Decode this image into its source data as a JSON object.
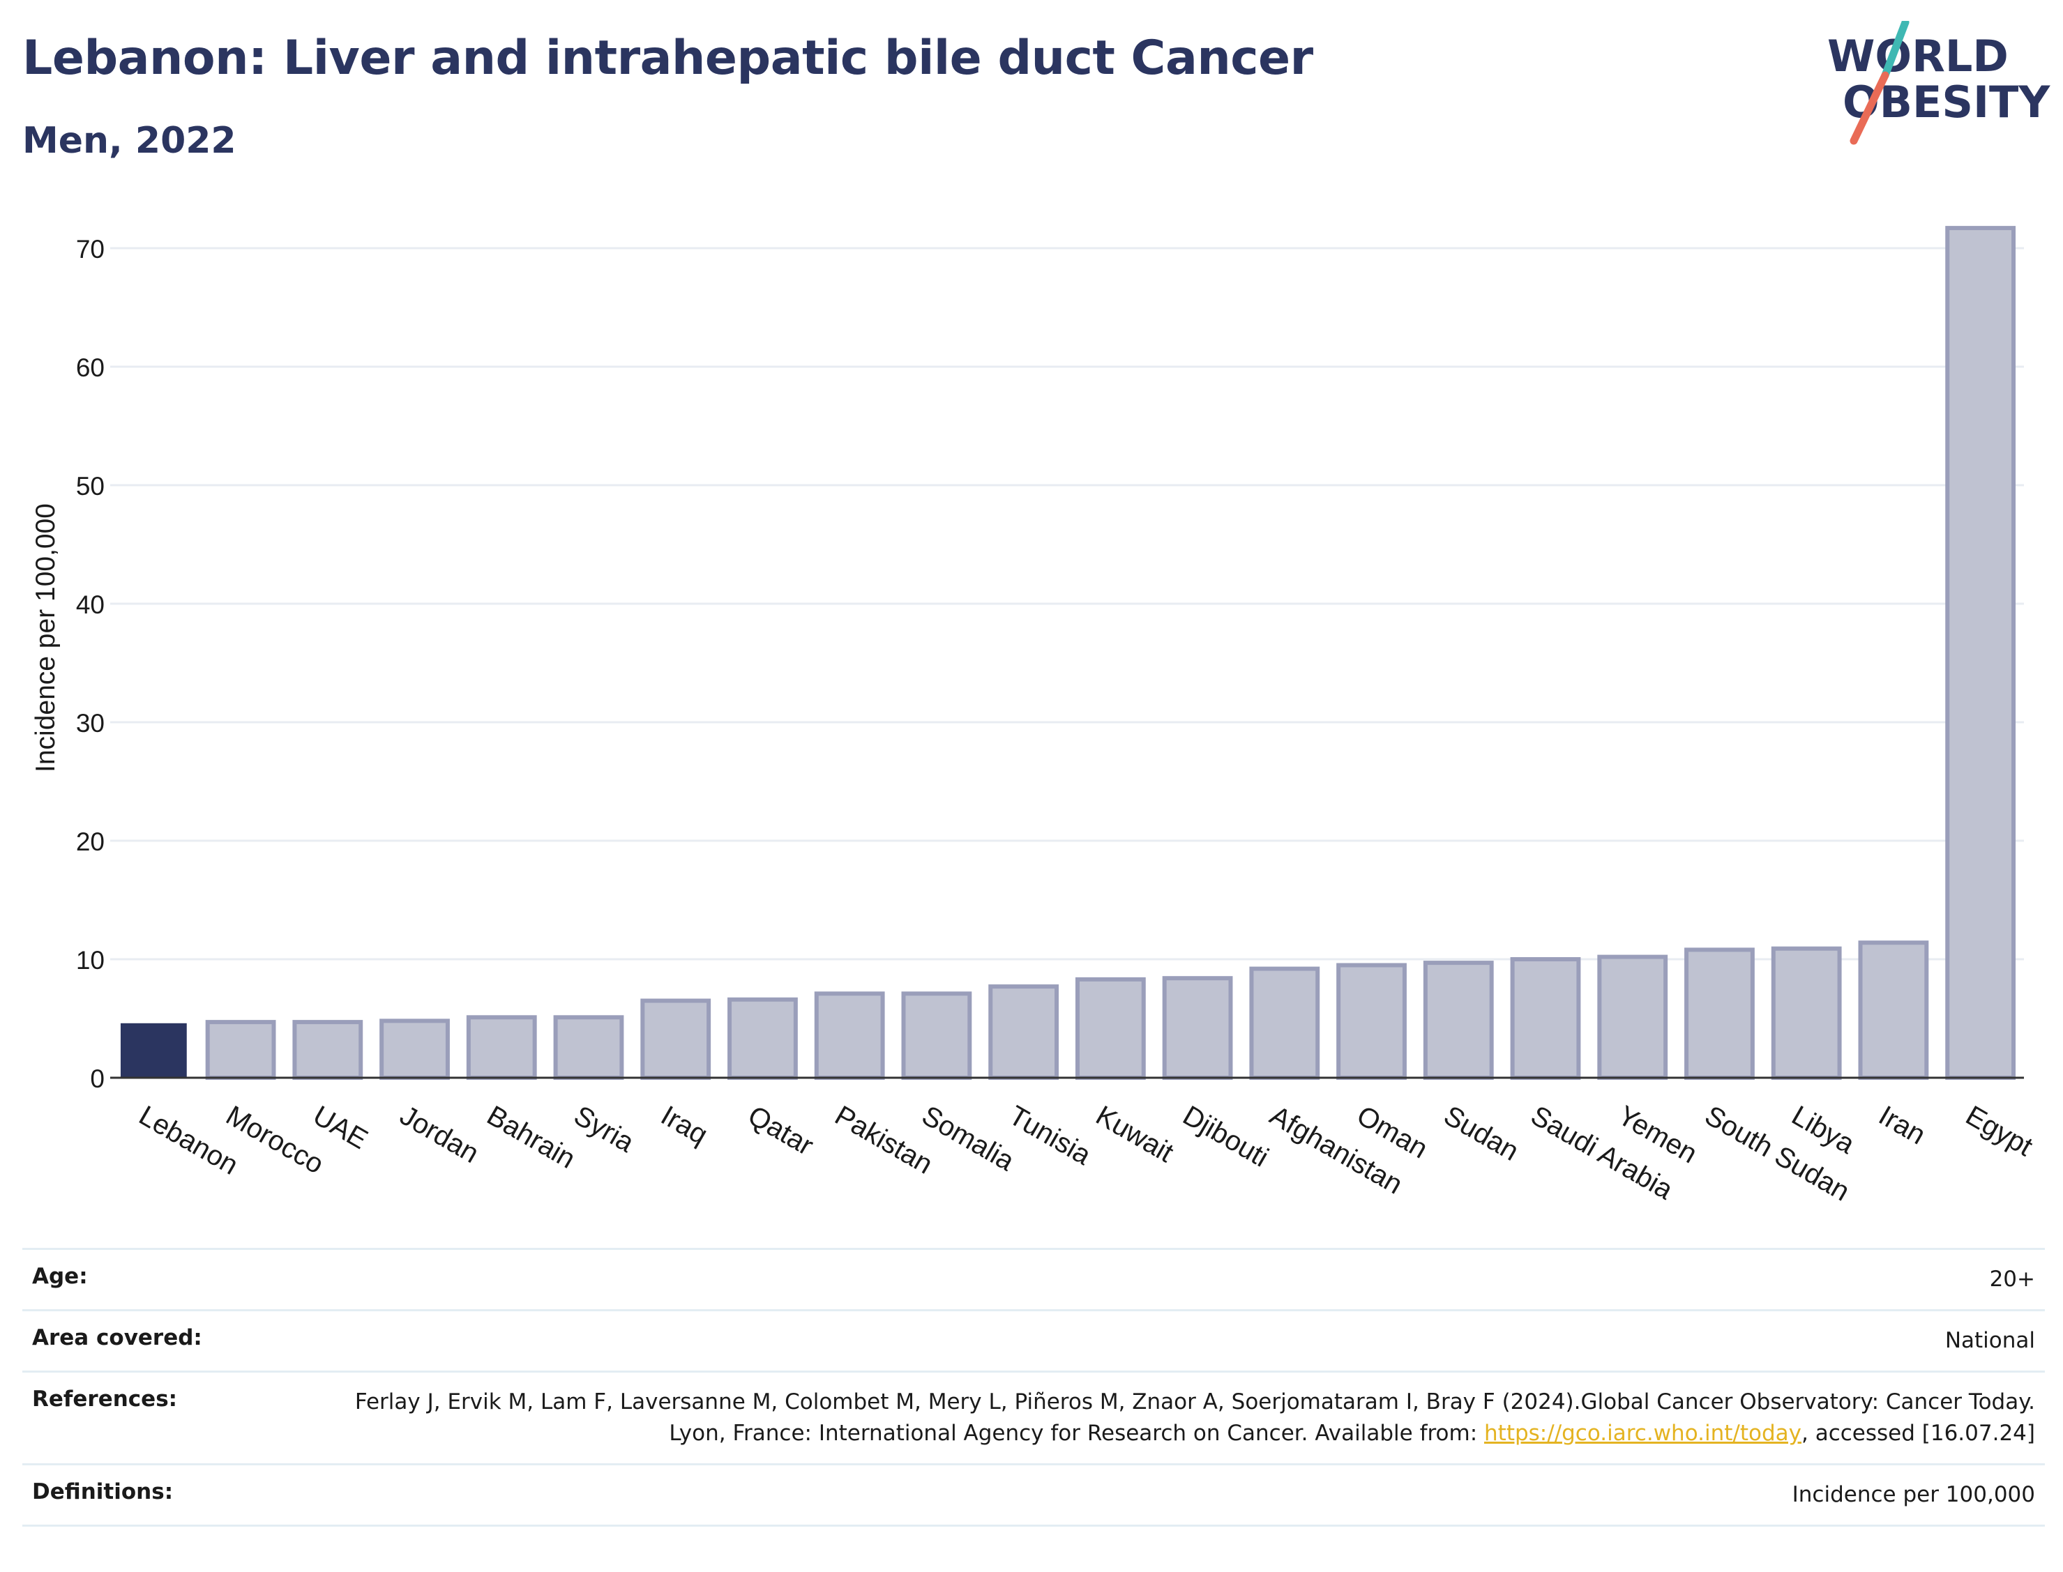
{
  "header": {
    "title": "Lebanon: Liver and intrahepatic bile duct Cancer",
    "subtitle": "Men, 2022"
  },
  "logo": {
    "line1": "WORLD",
    "line2": "OBESITY",
    "slash_colors": [
      "#3fb8b3",
      "#e96b56"
    ],
    "text_color": "#2b3560"
  },
  "chart_data": {
    "type": "bar",
    "ylabel": "Incidence per 100,000",
    "ylim": [
      0,
      73
    ],
    "yticks": [
      0,
      10,
      20,
      30,
      40,
      50,
      60,
      70
    ],
    "grid": true,
    "highlight": "Lebanon",
    "colors": {
      "highlight": "#2b3560",
      "bar_fill": "#bfc2d1",
      "bar_stroke": "#9a9eba"
    },
    "categories": [
      "Lebanon",
      "Morocco",
      "UAE",
      "Jordan",
      "Bahrain",
      "Syria",
      "Iraq",
      "Qatar",
      "Pakistan",
      "Somalia",
      "Tunisia",
      "Kuwait",
      "Djibouti",
      "Afghanistan",
      "Oman",
      "Sudan",
      "Saudi Arabia",
      "Yemen",
      "South Sudan",
      "Libya",
      "Iran",
      "Egypt"
    ],
    "values": [
      4.6,
      4.7,
      4.7,
      4.8,
      5.1,
      5.1,
      6.5,
      6.6,
      7.1,
      7.1,
      7.7,
      8.3,
      8.4,
      9.2,
      9.5,
      9.7,
      10.0,
      10.2,
      10.8,
      10.9,
      11.4,
      71.7
    ]
  },
  "meta": {
    "age": {
      "label": "Age:",
      "value": "20+"
    },
    "area": {
      "label": "Area covered:",
      "value": "National"
    },
    "references": {
      "label": "References:",
      "text_before": "Ferlay J, Ervik M, Lam F, Laversanne M, Colombet M, Mery L, Piñeros M, Znaor A, Soerjomataram I, Bray F (2024).Global Cancer Observatory: Cancer Today. Lyon, France: International Agency for Research on Cancer. Available from: ",
      "link": "https://gco.iarc.who.int/today",
      "text_after": ", accessed [16.07.24]"
    },
    "definitions": {
      "label": "Definitions:",
      "value": "Incidence per 100,000"
    }
  }
}
